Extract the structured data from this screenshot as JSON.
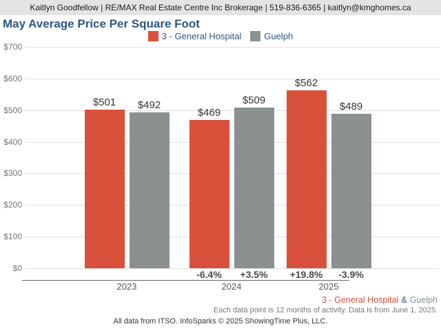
{
  "header": {
    "text": "Kaitlyn Goodfellow | RE/MAX Real Estate Centre Inc Brokerage | 519-836-6365 | kaitlyn@kmghomes.ca"
  },
  "title": "May Average Price Per Square Foot",
  "chart_data": {
    "type": "bar",
    "title": "May Average Price Per Square Foot",
    "categories": [
      "2023",
      "2024",
      "2025"
    ],
    "series": [
      {
        "name": "3 - General Hospital",
        "color": "#D9503B",
        "values": [
          501,
          469,
          562
        ],
        "value_labels": [
          "$501",
          "$469",
          "$562"
        ],
        "pct_change": [
          "",
          "-6.4%",
          "+19.8%"
        ]
      },
      {
        "name": "Guelph",
        "color": "#8A9190",
        "values": [
          492,
          509,
          489
        ],
        "value_labels": [
          "$492",
          "$509",
          "$489"
        ],
        "pct_change": [
          "",
          "+3.5%",
          "-3.9%"
        ]
      }
    ],
    "ylim": [
      0,
      700
    ],
    "ytick_values": [
      0,
      100,
      200,
      300,
      400,
      500,
      600,
      700
    ],
    "ytick_labels": [
      "$0",
      "$100",
      "$200",
      "$300",
      "$400",
      "$500",
      "$600",
      "$700"
    ],
    "xlabel": "",
    "ylabel": "",
    "grid": "horizontal",
    "legend_position": "top-center"
  },
  "footer": {
    "series1": "3 - General Hospital",
    "amp": "&",
    "series2": "Guelph",
    "note": "Each data point is 12 months of activity. Data is from June 1, 2025.",
    "attribution": "All data from ITSO. InfoSparks © 2025 ShowingTime Plus, LLC."
  },
  "colors": {
    "accent_red": "#D9503B",
    "accent_gray": "#8A9190",
    "title_blue": "#2A5783",
    "header_bg": "#E4E4E4"
  }
}
